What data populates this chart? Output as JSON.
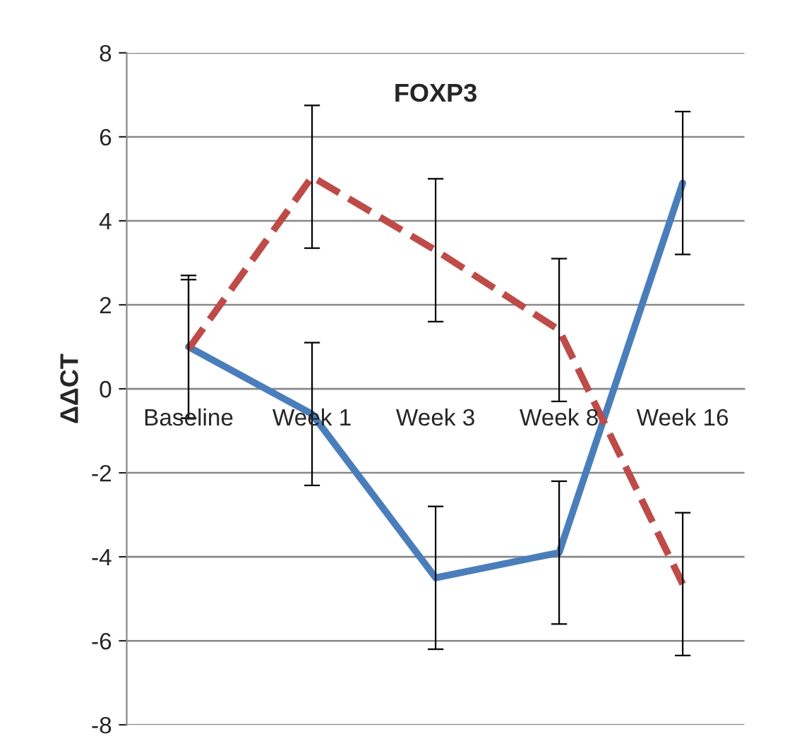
{
  "chart_data": {
    "type": "line",
    "title": "FOXP3",
    "ylabel": "ΔΔCT",
    "categories": [
      "Baseline",
      "Week 1",
      "Week 3",
      "Week 8",
      "Week 16"
    ],
    "series": [
      {
        "color": "#4a7ebb",
        "line_style": "solid",
        "values": [
          1.0,
          -0.6,
          -4.5,
          -3.9,
          4.9
        ],
        "errors": [
          1.7,
          1.7,
          1.7,
          1.7,
          1.7
        ]
      },
      {
        "color": "#be4b48",
        "line_style": "dashed",
        "values": [
          0.95,
          5.05,
          3.3,
          1.4,
          -4.65
        ],
        "errors": [
          1.65,
          1.7,
          1.7,
          1.7,
          1.7
        ]
      }
    ],
    "ylim": [
      -8,
      8
    ],
    "yticks": [
      -8,
      -6,
      -4,
      -2,
      0,
      2,
      4,
      6,
      8
    ],
    "grid": "y"
  }
}
